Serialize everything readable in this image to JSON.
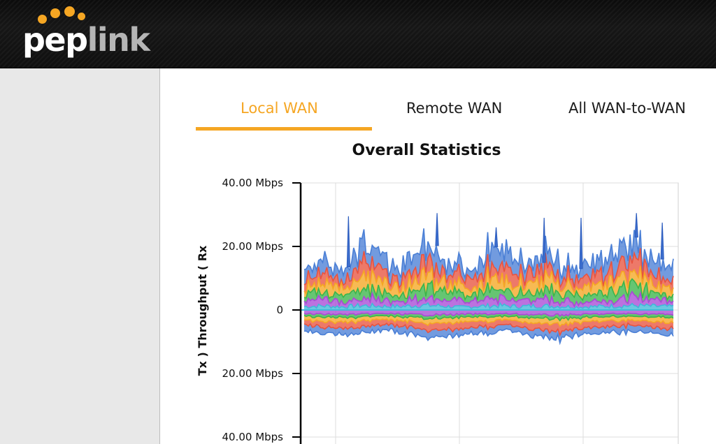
{
  "brand": {
    "logo_text": "peplink",
    "colors": {
      "accent": "#f5a623",
      "header_bg": "#111111",
      "sidebar_bg": "#e8e8e8"
    }
  },
  "tabs": [
    {
      "label": "Local WAN",
      "active": true
    },
    {
      "label": "Remote WAN",
      "active": false
    },
    {
      "label": "All WAN-to-WAN",
      "active": false
    }
  ],
  "chart_data": {
    "type": "area",
    "title": "Overall Statistics",
    "ylabel": "Tx ) Throughput ( Rx",
    "y_ticks": [
      "40.00 Mbps",
      "20.00 Mbps",
      "0",
      "20.00 Mbps",
      "40.00 Mbps"
    ],
    "ylim": [
      -40,
      40
    ],
    "grid": true,
    "stacked": true,
    "series_colors": [
      "#4a7fd6",
      "#e8533f",
      "#f5a623",
      "#3bb54a",
      "#a84ad6",
      "#40b8d8"
    ],
    "rx_series": [
      {
        "color": "#40b8d8",
        "values": [
          1.0,
          1.2,
          0.9,
          1.3,
          1.1,
          1.0,
          1.4,
          1.2,
          0.8,
          1.1,
          1.3,
          1.0,
          1.2,
          1.1,
          0.9,
          1.0,
          1.2,
          1.3,
          1.1,
          1.0
        ]
      },
      {
        "color": "#a84ad6",
        "values": [
          1.8,
          2.0,
          1.5,
          2.2,
          1.9,
          1.7,
          2.4,
          2.0,
          1.6,
          1.9,
          2.1,
          1.8,
          2.0,
          1.9,
          1.5,
          1.7,
          2.1,
          2.2,
          1.9,
          1.6
        ]
      },
      {
        "color": "#3bb54a",
        "values": [
          2.2,
          2.6,
          1.9,
          2.9,
          2.5,
          2.0,
          3.1,
          2.6,
          2.1,
          2.4,
          2.8,
          2.3,
          2.7,
          2.5,
          2.0,
          2.2,
          2.7,
          2.9,
          2.4,
          2.1
        ]
      },
      {
        "color": "#f5a623",
        "values": [
          2.4,
          3.2,
          2.1,
          3.5,
          2.9,
          2.3,
          3.6,
          3.0,
          2.4,
          2.8,
          3.4,
          2.6,
          3.1,
          2.9,
          2.2,
          2.5,
          3.2,
          3.4,
          2.7,
          2.4
        ]
      },
      {
        "color": "#e8533f",
        "values": [
          2.5,
          3.3,
          2.2,
          3.7,
          3.0,
          2.5,
          3.9,
          3.2,
          2.6,
          2.9,
          3.6,
          2.7,
          3.3,
          3.0,
          2.3,
          2.6,
          3.4,
          3.6,
          2.8,
          2.5
        ]
      },
      {
        "color": "#4a7fd6",
        "values": [
          3.0,
          4.5,
          2.6,
          5.0,
          4.0,
          3.1,
          5.4,
          4.2,
          3.2,
          3.8,
          4.8,
          3.5,
          4.4,
          4.0,
          2.9,
          3.4,
          4.6,
          5.0,
          3.7,
          3.2
        ]
      }
    ],
    "rx_spikes": [
      {
        "t": 0.12,
        "v": 29.5
      },
      {
        "t": 0.36,
        "v": 30.5
      },
      {
        "t": 0.52,
        "v": 26.0
      },
      {
        "t": 0.65,
        "v": 29.0
      },
      {
        "t": 0.75,
        "v": 29.0
      },
      {
        "t": 0.9,
        "v": 30.5
      },
      {
        "t": 0.97,
        "v": 27.5
      }
    ],
    "tx_series": [
      {
        "color": "#a84ad6",
        "values": [
          1.2,
          1.4,
          1.1,
          1.5,
          1.3,
          1.2,
          1.6,
          1.3,
          1.1,
          1.4
        ]
      },
      {
        "color": "#3bb54a",
        "values": [
          0.8,
          1.0,
          0.7,
          1.1,
          0.9,
          0.8,
          1.2,
          0.9,
          0.8,
          1.0
        ]
      },
      {
        "color": "#f5a623",
        "values": [
          1.2,
          1.5,
          1.1,
          1.6,
          1.4,
          1.2,
          1.7,
          1.4,
          1.2,
          1.5
        ]
      },
      {
        "color": "#e8533f",
        "values": [
          1.6,
          2.0,
          1.5,
          2.2,
          1.8,
          1.6,
          2.3,
          1.9,
          1.6,
          2.0
        ]
      },
      {
        "color": "#4a7fd6",
        "values": [
          1.8,
          2.0,
          1.7,
          2.2,
          1.9,
          1.8,
          2.1,
          1.9,
          1.8,
          2.0
        ]
      }
    ]
  }
}
